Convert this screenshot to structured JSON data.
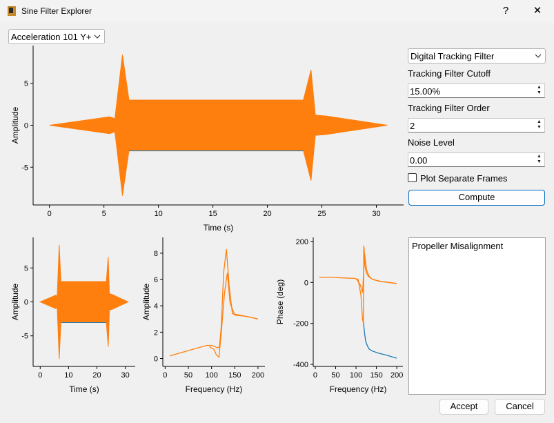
{
  "window": {
    "title": "Sine Filter Explorer",
    "help_glyph": "?",
    "close_glyph": "✕"
  },
  "channel_select": {
    "value": "Acceleration 101 Y+"
  },
  "controls": {
    "filter_type": "Digital Tracking Filter",
    "cutoff_label": "Tracking Filter Cutoff",
    "cutoff_value": "15.00%",
    "order_label": "Tracking Filter Order",
    "order_value": "2",
    "noise_label": "Noise Level",
    "noise_value": "0.00",
    "separate_frames_label": "Plot Separate Frames",
    "separate_frames_checked": false,
    "compute_label": "Compute"
  },
  "notes_text": "Propeller Misalignment",
  "footer": {
    "accept_label": "Accept",
    "cancel_label": "Cancel"
  },
  "colors": {
    "series_orange": "#ff7f0e",
    "series_blue": "#1f77b4",
    "accent": "#0067c0"
  },
  "chart_data": [
    {
      "type": "area",
      "xlabel": "Time (s)",
      "ylabel": "Amplitude",
      "xticks": [
        0,
        5,
        10,
        15,
        20,
        25,
        30
      ],
      "yticks": [
        -5,
        0,
        5
      ],
      "xlim": [
        -1.5,
        32.5
      ],
      "ylim": [
        -9.5,
        9.5
      ],
      "series": [
        {
          "color": "#ff7f0e",
          "x": [
            0,
            5.5,
            6.0,
            6.7,
            7.3,
            23.3,
            24.0,
            24.4,
            25.4,
            31.0
          ],
          "upper": [
            0,
            1.0,
            0.8,
            8.4,
            3.0,
            3.0,
            6.6,
            1.2,
            1.1,
            0
          ],
          "lower": [
            0,
            -1.0,
            -0.8,
            -8.4,
            -3.0,
            -3.0,
            -6.6,
            -1.2,
            -1.1,
            0
          ]
        }
      ]
    },
    {
      "type": "area",
      "xlabel": "Time (s)",
      "ylabel": "Amplitude",
      "xticks": [
        0,
        10,
        20,
        30
      ],
      "yticks": [
        -5,
        0,
        5
      ],
      "xlim": [
        -2.5,
        33.5
      ],
      "ylim": [
        -9.5,
        9.5
      ],
      "series": [
        {
          "color": "#ff7f0e",
          "x": [
            0,
            5.5,
            6.0,
            6.7,
            7.3,
            23.3,
            24.0,
            24.4,
            25.4,
            31.0
          ],
          "upper": [
            0,
            1.0,
            0.8,
            8.4,
            3.0,
            3.0,
            6.6,
            1.2,
            1.1,
            0
          ],
          "lower": [
            0,
            -1.0,
            -0.8,
            -8.4,
            -3.0,
            -3.0,
            -6.6,
            -1.2,
            -1.1,
            0
          ]
        }
      ]
    },
    {
      "type": "line",
      "xlabel": "Frequency (Hz)",
      "ylabel": "Amplitude",
      "xticks": [
        0,
        50,
        100,
        150,
        200
      ],
      "yticks": [
        0,
        2,
        4,
        6,
        8
      ],
      "xlim": [
        -5,
        215
      ],
      "ylim": [
        -0.6,
        9.2
      ],
      "series": [
        {
          "color": "#ff7f0e",
          "x": [
            10,
            40,
            70,
            90,
            100,
            108,
            113,
            117,
            121,
            126,
            132,
            138,
            145,
            175,
            200
          ],
          "y": [
            0.2,
            0.5,
            0.8,
            1.0,
            1.0,
            0.9,
            0.8,
            0.9,
            2.5,
            6.5,
            8.3,
            5.5,
            3.4,
            3.2,
            3.0
          ]
        },
        {
          "color": "#ff7f0e",
          "x": [
            95,
            105,
            110,
            116,
            121,
            128,
            134,
            140,
            150,
            175,
            200
          ],
          "y": [
            0.9,
            0.7,
            0.3,
            0.1,
            2.0,
            5.0,
            6.5,
            4.2,
            3.3,
            3.2,
            3.0
          ]
        }
      ]
    },
    {
      "type": "line",
      "xlabel": "Frequency (Hz)",
      "ylabel": "Phase (deg)",
      "xticks": [
        0,
        50,
        100,
        150,
        200
      ],
      "yticks": [
        -400,
        -200,
        0,
        200
      ],
      "xlim": [
        -5,
        215
      ],
      "ylim": [
        -410,
        220
      ],
      "series": [
        {
          "color": "#1f77b4",
          "x": [
            118,
            121,
            124,
            128,
            132,
            140,
            155,
            175,
            200
          ],
          "y": [
            -190,
            -250,
            -290,
            -310,
            -325,
            -335,
            -345,
            -355,
            -370
          ]
        },
        {
          "color": "#ff7f0e",
          "x": [
            10,
            40,
            70,
            95,
            105,
            112,
            116,
            118,
            119,
            120,
            121,
            122,
            125,
            130,
            140,
            160,
            200
          ],
          "y": [
            25,
            25,
            22,
            20,
            15,
            -60,
            -180,
            -200,
            180,
            160,
            120,
            80,
            50,
            30,
            15,
            5,
            -5
          ]
        },
        {
          "color": "#ff7f0e",
          "x": [
            100,
            110,
            116,
            121,
            126,
            132,
            140,
            160,
            200
          ],
          "y": [
            20,
            -10,
            -50,
            140,
            60,
            30,
            15,
            5,
            -5
          ]
        }
      ]
    }
  ]
}
